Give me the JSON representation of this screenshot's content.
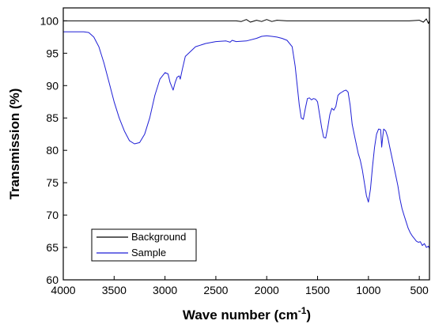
{
  "chart_data": {
    "type": "line",
    "title": "",
    "xlabel": "Wave number (cm",
    "xlabel_sup": "-1",
    "xlabel_suffix": ")",
    "ylabel": "Transmission (%)",
    "xlim": [
      4000,
      400
    ],
    "ylim": [
      60,
      102
    ],
    "x_reversed": true,
    "xticks": [
      4000,
      3500,
      3000,
      2500,
      2000,
      1500,
      1000,
      500
    ],
    "xtick_labels": [
      "4000",
      "3500",
      "3000",
      "2500",
      "2000",
      "1500",
      "1000",
      "500"
    ],
    "yticks": [
      60,
      65,
      70,
      75,
      80,
      85,
      90,
      95,
      100
    ],
    "ytick_labels": [
      "60",
      "65",
      "70",
      "75",
      "80",
      "85",
      "90",
      "95",
      "100"
    ],
    "grid": false,
    "legend_position": "bottom-left",
    "series": [
      {
        "name": "Background",
        "color": "#000000",
        "x": [
          4000,
          3000,
          2300,
          2250,
          2200,
          2160,
          2100,
          2050,
          2000,
          1950,
          1900,
          1800,
          1700,
          1600,
          1000,
          600,
          500,
          460,
          430,
          410,
          400
        ],
        "y": [
          100.0,
          100.0,
          100.0,
          99.9,
          100.2,
          99.8,
          100.1,
          99.9,
          100.2,
          99.9,
          100.1,
          100.0,
          100.0,
          100.0,
          100.0,
          100.0,
          100.1,
          99.8,
          100.3,
          99.6,
          100.1
        ]
      },
      {
        "name": "Sample",
        "color": "#1f1fd6",
        "x": [
          4000,
          3800,
          3750,
          3700,
          3650,
          3600,
          3550,
          3500,
          3450,
          3400,
          3350,
          3300,
          3250,
          3200,
          3150,
          3100,
          3050,
          3000,
          2970,
          2950,
          2920,
          2900,
          2880,
          2860,
          2850,
          2830,
          2800,
          2700,
          2600,
          2500,
          2400,
          2360,
          2340,
          2300,
          2200,
          2100,
          2050,
          2000,
          1950,
          1900,
          1850,
          1800,
          1750,
          1720,
          1700,
          1680,
          1660,
          1640,
          1620,
          1600,
          1580,
          1560,
          1540,
          1520,
          1500,
          1480,
          1460,
          1440,
          1420,
          1400,
          1380,
          1360,
          1340,
          1320,
          1300,
          1280,
          1260,
          1240,
          1220,
          1200,
          1180,
          1160,
          1140,
          1120,
          1100,
          1080,
          1060,
          1040,
          1020,
          1000,
          980,
          960,
          940,
          920,
          900,
          880,
          870,
          860,
          850,
          830,
          810,
          790,
          770,
          750,
          730,
          710,
          690,
          670,
          650,
          630,
          610,
          590,
          570,
          550,
          530,
          510,
          490,
          470,
          450,
          430,
          410,
          400
        ],
        "y": [
          98.3,
          98.3,
          98.2,
          97.5,
          96.0,
          93.5,
          90.5,
          87.5,
          85.0,
          83.0,
          81.5,
          81.0,
          81.2,
          82.5,
          85.0,
          88.5,
          91.0,
          92.0,
          91.8,
          90.5,
          89.3,
          90.5,
          91.3,
          91.5,
          91.0,
          92.5,
          94.5,
          96.0,
          96.5,
          96.8,
          96.9,
          96.7,
          97.0,
          96.8,
          96.9,
          97.3,
          97.6,
          97.7,
          97.6,
          97.5,
          97.3,
          97.0,
          96.0,
          93.0,
          90.0,
          87.0,
          85.0,
          84.8,
          86.5,
          88.0,
          88.1,
          87.8,
          88.0,
          87.9,
          87.5,
          85.5,
          83.5,
          82.0,
          81.9,
          83.5,
          85.5,
          86.5,
          86.2,
          86.8,
          88.5,
          88.8,
          89.0,
          89.2,
          89.3,
          89.0,
          87.0,
          84.0,
          82.5,
          81.0,
          79.5,
          78.5,
          77.0,
          75.0,
          73.0,
          72.0,
          74.0,
          77.5,
          80.5,
          82.5,
          83.3,
          83.2,
          80.5,
          82.0,
          83.3,
          83.0,
          82.0,
          80.5,
          79.0,
          77.5,
          76.0,
          74.5,
          72.5,
          71.0,
          70.0,
          69.0,
          68.0,
          67.3,
          66.8,
          66.4,
          66.0,
          65.8,
          65.9,
          65.3,
          65.6,
          65.0,
          65.2,
          64.8
        ]
      }
    ]
  }
}
